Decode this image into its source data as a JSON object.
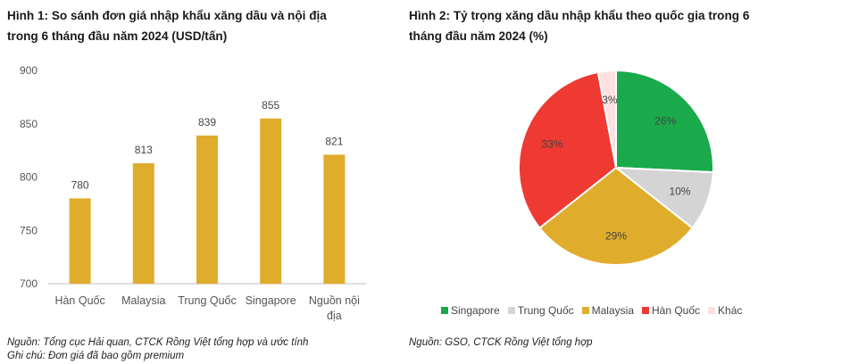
{
  "figure1": {
    "title_line1": "Hình 1: So sánh đơn giá nhập khẩu xăng dầu và nội địa",
    "title_line2": "trong 6 tháng đầu năm 2024 (USD/tấn)",
    "source": "Nguồn: Tổng cục Hải quan, CTCK Rồng Việt tổng hợp và ước tính",
    "note": "Ghi chú: Đơn giá đã bao gồm premium"
  },
  "figure2": {
    "title_line1": "Hình 2: Tỷ trọng xăng dầu nhập khẩu theo quốc gia trong 6",
    "title_line2": "tháng đầu năm 2024 (%)",
    "source": "Nguồn: GSO, CTCK Rồng Việt tổng hợp"
  },
  "chart_data": [
    {
      "type": "bar",
      "title": "Hình 1: So sánh đơn giá nhập khẩu xăng dầu và nội địa trong 6 tháng đầu năm 2024 (USD/tấn)",
      "categories": [
        [
          "Hàn Quốc"
        ],
        [
          "Malaysia"
        ],
        [
          "Trung Quốc"
        ],
        [
          "Singapore"
        ],
        [
          "Nguồn nội",
          "địa"
        ]
      ],
      "values": [
        780,
        813,
        839,
        855,
        821
      ],
      "data_labels": [
        "780",
        "813",
        "839",
        "855",
        "821"
      ],
      "ylim": [
        700,
        900
      ],
      "yticks": [
        700,
        750,
        800,
        850,
        900
      ],
      "grid": false,
      "bar_color": "#e0ac2b"
    },
    {
      "type": "pie",
      "title": "Hình 2: Tỷ trọng xăng dầu nhập khẩu theo quốc gia trong 6 tháng đầu năm 2024 (%)",
      "start_angle_deg": 0,
      "direction": "clockwise",
      "slices": [
        {
          "label": "Singapore",
          "value": 26,
          "display": "26%",
          "color": "#1aaa4b"
        },
        {
          "label": "Trung Quốc",
          "value": 10,
          "display": "10%",
          "color": "#d4d4d4"
        },
        {
          "label": "Malaysia",
          "value": 29,
          "display": "29%",
          "color": "#e0ac2b"
        },
        {
          "label": "Hàn Quốc",
          "value": 33,
          "display": "33%",
          "color": "#ee3a33"
        },
        {
          "label": "Khác",
          "value": 3,
          "display": "3%",
          "color": "#fde1e1"
        }
      ],
      "legend_position": "bottom"
    }
  ]
}
